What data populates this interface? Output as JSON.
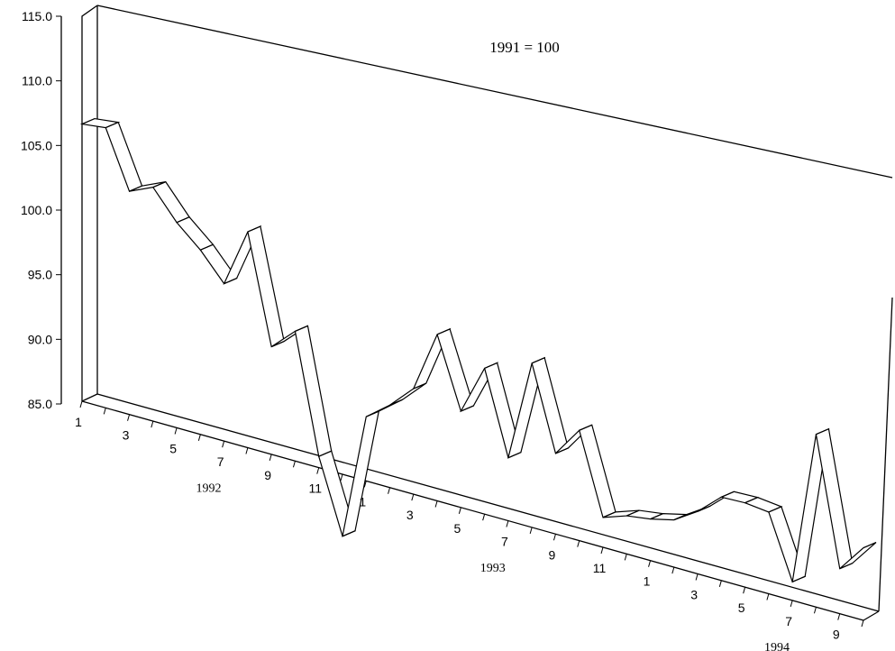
{
  "chart_data": {
    "type": "line",
    "subtitle": "1991 = 100",
    "y_ticks": [
      "115.0",
      "110.0",
      "105.0",
      "100.0",
      "95.0",
      "90.0",
      "85.0"
    ],
    "ylim": [
      85,
      115
    ],
    "x_tick_labels": [
      "1",
      "3",
      "5",
      "7",
      "9",
      "11",
      "1",
      "3",
      "5",
      "7",
      "9",
      "11",
      "1",
      "3",
      "5",
      "7",
      "9"
    ],
    "year_labels": [
      "1992",
      "1993",
      "1994"
    ],
    "x": [
      "1992-01",
      "1992-02",
      "1992-03",
      "1992-04",
      "1992-05",
      "1992-06",
      "1992-07",
      "1992-08",
      "1992-09",
      "1992-10",
      "1992-11",
      "1992-12",
      "1993-01",
      "1993-02",
      "1993-03",
      "1993-04",
      "1993-05",
      "1993-06",
      "1993-07",
      "1993-08",
      "1993-09",
      "1993-10",
      "1993-11",
      "1993-12",
      "1994-01",
      "1994-02",
      "1994-03",
      "1994-04",
      "1994-05",
      "1994-06",
      "1994-07",
      "1994-08",
      "1994-09",
      "1994-10"
    ],
    "values": [
      106.6,
      106.9,
      102.5,
      103.4,
      101.2,
      99.6,
      97.5,
      102.2,
      93.6,
      95.4,
      85.9,
      80.0,
      90.2,
      91.7,
      93.6,
      98.6,
      92.9,
      97.0,
      90.2,
      98.6,
      91.7,
      94.2,
      87.5,
      88.2,
      88.5,
      89.0,
      90.3,
      92.1,
      92.2,
      92.0,
      86.6,
      99.9,
      88.9,
      91.3
    ],
    "grid": false,
    "legend": "none"
  }
}
